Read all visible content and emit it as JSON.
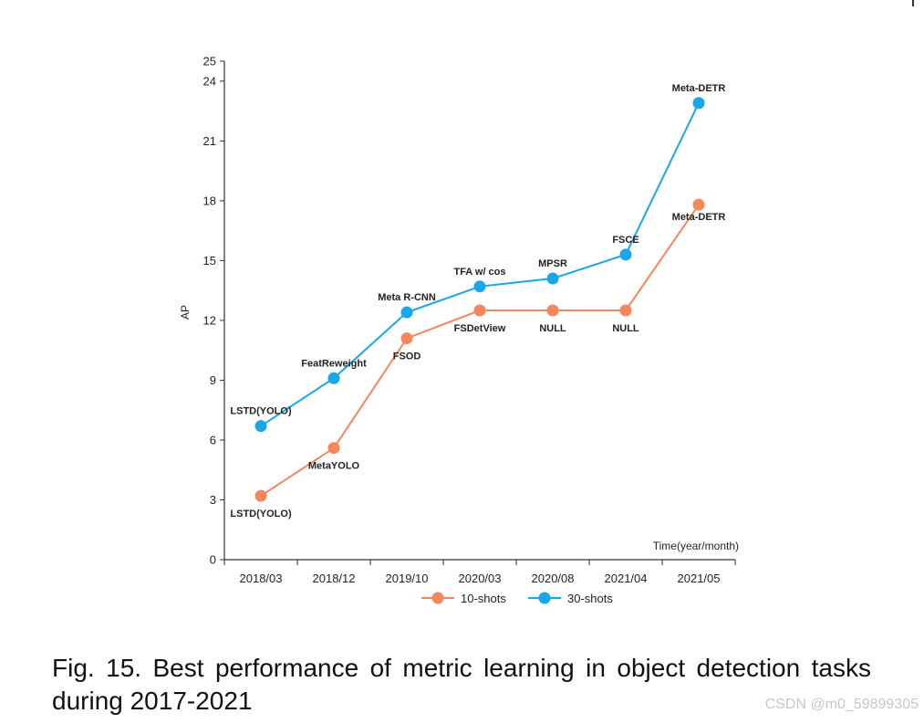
{
  "chart_data": {
    "type": "line",
    "categories": [
      "2018/03",
      "2018/12",
      "2019/10",
      "2020/03",
      "2020/08",
      "2021/04",
      "2021/05"
    ],
    "xlabel": "Time(year/month)",
    "ylabel": "AP",
    "ylim": [
      0,
      25
    ],
    "yticks": [
      0,
      3,
      6,
      9,
      12,
      15,
      18,
      21,
      24,
      25
    ],
    "grid": false,
    "legend_position": "bottom-center",
    "series": [
      {
        "name": "10-shots",
        "color": "#f4875b",
        "values": [
          3.2,
          5.6,
          11.1,
          12.5,
          12.5,
          12.5,
          17.8
        ],
        "labels": [
          "LSTD(YOLO)",
          "MetaYOLO",
          "FSOD",
          "FSDetView",
          "NULL",
          "NULL",
          "Meta-DETR"
        ]
      },
      {
        "name": "30-shots",
        "color": "#1aa7e8",
        "values": [
          6.7,
          9.1,
          12.4,
          13.7,
          14.1,
          15.3,
          22.9
        ],
        "labels": [
          "LSTD(YOLO)",
          "FeatReweight",
          "Meta R-CNN",
          "TFA w/ cos",
          "MPSR",
          "FSCE",
          "Meta-DETR"
        ]
      }
    ]
  },
  "caption": "Fig. 15. Best performance of metric learning in object detection tasks during 2017-2021",
  "watermark": "CSDN @m0_59899305"
}
